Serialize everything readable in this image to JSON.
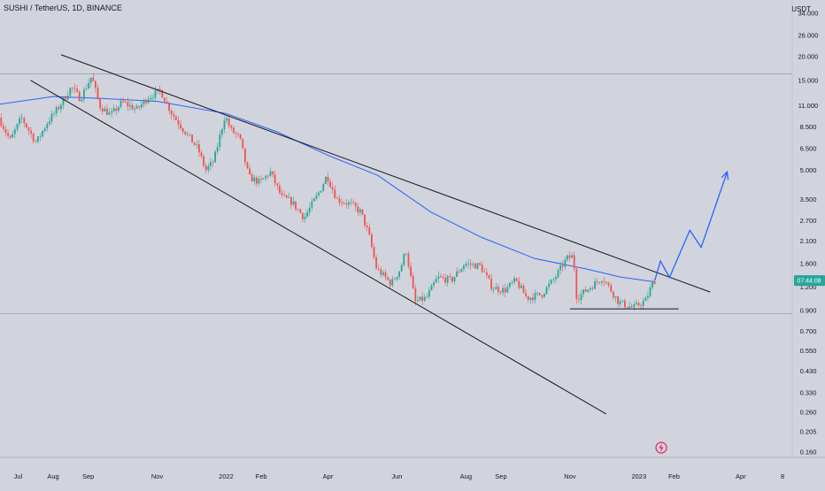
{
  "header": {
    "symbol_title": "SUSHI / TetherUS, 1D, BINANCE",
    "currency": "USDT"
  },
  "price_label": {
    "value": "07:44:08",
    "price": 1.3,
    "color": "#26a69a"
  },
  "event_badge": {
    "icon": "lightning-icon",
    "color": "#e91e63"
  },
  "chart_data": {
    "type": "candlestick",
    "y_scale": "log",
    "ylim": [
      0.15,
      40
    ],
    "y_ticks": [
      {
        "label": "34.000",
        "value": 34
      },
      {
        "label": "26.000",
        "value": 26
      },
      {
        "label": "20.000",
        "value": 20
      },
      {
        "label": "15.000",
        "value": 15
      },
      {
        "label": "11.000",
        "value": 11
      },
      {
        "label": "8.500",
        "value": 8.5
      },
      {
        "label": "6.500",
        "value": 6.5
      },
      {
        "label": "5.000",
        "value": 5
      },
      {
        "label": "3.500",
        "value": 3.5
      },
      {
        "label": "2.700",
        "value": 2.7
      },
      {
        "label": "2.100",
        "value": 2.1
      },
      {
        "label": "1.600",
        "value": 1.6
      },
      {
        "label": "1.200",
        "value": 1.2
      },
      {
        "label": "0.900",
        "value": 0.9
      },
      {
        "label": "0.700",
        "value": 0.7
      },
      {
        "label": "0.550",
        "value": 0.55
      },
      {
        "label": "0.430",
        "value": 0.43
      },
      {
        "label": "0.330",
        "value": 0.33
      },
      {
        "label": "0.260",
        "value": 0.26
      },
      {
        "label": "0.205",
        "value": 0.205
      },
      {
        "label": "0.160",
        "value": 0.16
      }
    ],
    "x_range": [
      "2021-06-15",
      "2023-05-15"
    ],
    "x_ticks": [
      {
        "label": "Jul",
        "date": "2021-07-01"
      },
      {
        "label": "Aug",
        "date": "2021-08-01"
      },
      {
        "label": "Sep",
        "date": "2021-09-01"
      },
      {
        "label": "Nov",
        "date": "2021-11-01"
      },
      {
        "label": "2022",
        "date": "2022-01-01"
      },
      {
        "label": "Feb",
        "date": "2022-02-01"
      },
      {
        "label": "Apr",
        "date": "2022-04-01"
      },
      {
        "label": "Jun",
        "date": "2022-06-01"
      },
      {
        "label": "Aug",
        "date": "2022-08-01"
      },
      {
        "label": "Sep",
        "date": "2022-09-01"
      },
      {
        "label": "Nov",
        "date": "2022-11-01"
      },
      {
        "label": "2023",
        "date": "2023-01-01"
      },
      {
        "label": "Feb",
        "date": "2023-02-01"
      },
      {
        "label": "Apr",
        "date": "2023-04-01"
      },
      {
        "label": "8",
        "date": "2023-05-08"
      }
    ],
    "series": [
      {
        "kind": "close",
        "up_color": "#26a69a",
        "down_color": "#ef5350",
        "points": [
          [
            "2021-06-15",
            9.5
          ],
          [
            "2021-06-25",
            7.2
          ],
          [
            "2021-07-05",
            9.5
          ],
          [
            "2021-07-18",
            7.0
          ],
          [
            "2021-07-28",
            9.0
          ],
          [
            "2021-08-08",
            11.0
          ],
          [
            "2021-08-18",
            13.8
          ],
          [
            "2021-08-26",
            12.0
          ],
          [
            "2021-09-05",
            15.8
          ],
          [
            "2021-09-12",
            11.0
          ],
          [
            "2021-09-22",
            9.8
          ],
          [
            "2021-10-02",
            11.5
          ],
          [
            "2021-10-15",
            10.5
          ],
          [
            "2021-10-25",
            12.2
          ],
          [
            "2021-11-05",
            13.2
          ],
          [
            "2021-11-15",
            10.0
          ],
          [
            "2021-11-28",
            7.8
          ],
          [
            "2021-12-08",
            6.5
          ],
          [
            "2021-12-15",
            5.0
          ],
          [
            "2021-12-22",
            5.6
          ],
          [
            "2022-01-01",
            9.8
          ],
          [
            "2022-01-06",
            8.2
          ],
          [
            "2022-01-14",
            7.4
          ],
          [
            "2022-01-22",
            4.6
          ],
          [
            "2022-02-01",
            4.3
          ],
          [
            "2022-02-10",
            4.9
          ],
          [
            "2022-02-20",
            3.6
          ],
          [
            "2022-03-01",
            3.4
          ],
          [
            "2022-03-12",
            2.8
          ],
          [
            "2022-03-25",
            3.8
          ],
          [
            "2022-04-01",
            4.7
          ],
          [
            "2022-04-10",
            3.5
          ],
          [
            "2022-04-22",
            3.3
          ],
          [
            "2022-05-01",
            3.0
          ],
          [
            "2022-05-08",
            2.3
          ],
          [
            "2022-05-15",
            1.5
          ],
          [
            "2022-05-28",
            1.25
          ],
          [
            "2022-06-05",
            1.5
          ],
          [
            "2022-06-10",
            1.9
          ],
          [
            "2022-06-18",
            1.0
          ],
          [
            "2022-06-28",
            1.05
          ],
          [
            "2022-07-08",
            1.35
          ],
          [
            "2022-07-20",
            1.3
          ],
          [
            "2022-08-01",
            1.6
          ],
          [
            "2022-08-15",
            1.55
          ],
          [
            "2022-08-25",
            1.2
          ],
          [
            "2022-09-05",
            1.15
          ],
          [
            "2022-09-15",
            1.3
          ],
          [
            "2022-09-25",
            1.05
          ],
          [
            "2022-10-08",
            1.1
          ],
          [
            "2022-10-20",
            1.35
          ],
          [
            "2022-10-30",
            1.7
          ],
          [
            "2022-11-05",
            1.75
          ],
          [
            "2022-11-08",
            1.05
          ],
          [
            "2022-11-20",
            1.2
          ],
          [
            "2022-12-01",
            1.35
          ],
          [
            "2022-12-15",
            1.0
          ],
          [
            "2022-12-28",
            0.93
          ],
          [
            "2023-01-08",
            1.02
          ],
          [
            "2023-01-15",
            1.3
          ]
        ]
      },
      {
        "kind": "moving_average",
        "color": "#2962ff",
        "points": [
          [
            "2021-06-15",
            11.2
          ],
          [
            "2021-08-01",
            12.3
          ],
          [
            "2021-09-15",
            12.0
          ],
          [
            "2021-11-01",
            11.6
          ],
          [
            "2022-01-01",
            10.0
          ],
          [
            "2022-02-15",
            8.0
          ],
          [
            "2022-04-01",
            6.0
          ],
          [
            "2022-05-15",
            4.7
          ],
          [
            "2022-07-01",
            3.0
          ],
          [
            "2022-08-15",
            2.2
          ],
          [
            "2022-10-01",
            1.7
          ],
          [
            "2022-11-15",
            1.5
          ],
          [
            "2022-12-15",
            1.36
          ],
          [
            "2023-01-15",
            1.28
          ]
        ]
      }
    ],
    "annotations": [
      {
        "kind": "trendline",
        "color": "#131722",
        "from": [
          "2021-08-08",
          20.5
        ],
        "to": [
          "2023-03-05",
          1.13
        ]
      },
      {
        "kind": "trendline",
        "color": "#131722",
        "from": [
          "2021-07-12",
          15.0
        ],
        "to": [
          "2022-12-03",
          0.255
        ]
      },
      {
        "kind": "trendline",
        "color": "#131722",
        "from": [
          "2022-11-01",
          0.92
        ],
        "to": [
          "2023-02-05",
          0.92
        ]
      },
      {
        "kind": "horizontal_level",
        "color": "#9598a1",
        "price": 16.2
      },
      {
        "kind": "horizontal_level",
        "color": "#9598a1",
        "price": 0.87
      },
      {
        "kind": "projection",
        "color": "#2962ff",
        "points": [
          [
            "2023-01-15",
            1.3
          ],
          [
            "2023-01-20",
            1.65
          ],
          [
            "2023-01-28",
            1.35
          ],
          [
            "2023-02-15",
            2.4
          ],
          [
            "2023-02-25",
            1.95
          ],
          [
            "2023-03-20",
            4.9
          ]
        ]
      }
    ]
  }
}
